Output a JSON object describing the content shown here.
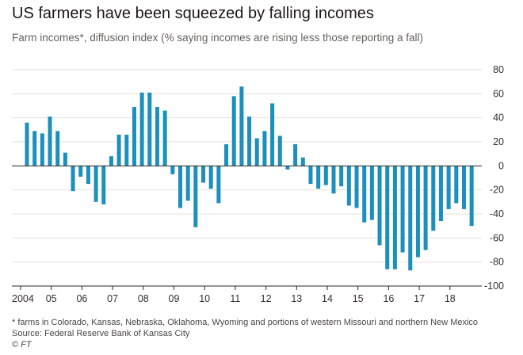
{
  "title": "US farmers have been squeezed by falling incomes",
  "subtitle": "Farm incomes*, diffusion index (% saying incomes are rising less those reporting a fall)",
  "footnote": "* farms in Colorado, Kansas, Nebraska, Oklahoma, Wyoming and portions of western Missouri and northern New Mexico",
  "source": "Source: Federal Reserve Bank of Kansas City",
  "credit": "© FT",
  "colors": {
    "bar": "#1b8fbd",
    "grid": "#e7e1da",
    "zero": "#2a2826",
    "axis": "#33302e"
  },
  "chart_data": {
    "type": "bar",
    "x_start": 2004,
    "x_step_quarters": 1,
    "xlim": [
      2004,
      2019
    ],
    "ylim": [
      -100,
      80
    ],
    "yticks": [
      -100,
      -80,
      -60,
      -40,
      -20,
      0,
      20,
      40,
      60,
      80
    ],
    "xtick_labels": [
      "2004",
      "05",
      "06",
      "07",
      "08",
      "09",
      "10",
      "11",
      "12",
      "13",
      "14",
      "15",
      "16",
      "17",
      "18"
    ],
    "ylabel_position": "right",
    "grid": true,
    "values": [
      36,
      29,
      27,
      41,
      29,
      11,
      -21,
      -9,
      -15,
      -30,
      -32,
      8,
      26,
      26,
      49,
      61,
      61,
      49,
      46,
      -7,
      -35,
      -29,
      -51,
      -14,
      -19,
      -31,
      18,
      58,
      66,
      41,
      23,
      29,
      52,
      25,
      -3,
      18,
      7,
      -15,
      -19,
      -16,
      -23,
      -17,
      -33,
      -35,
      -47,
      -45,
      -66,
      -86,
      -86,
      -72,
      -87,
      -76,
      -70,
      -54,
      -46,
      -36,
      -31,
      -36,
      -50
    ]
  }
}
